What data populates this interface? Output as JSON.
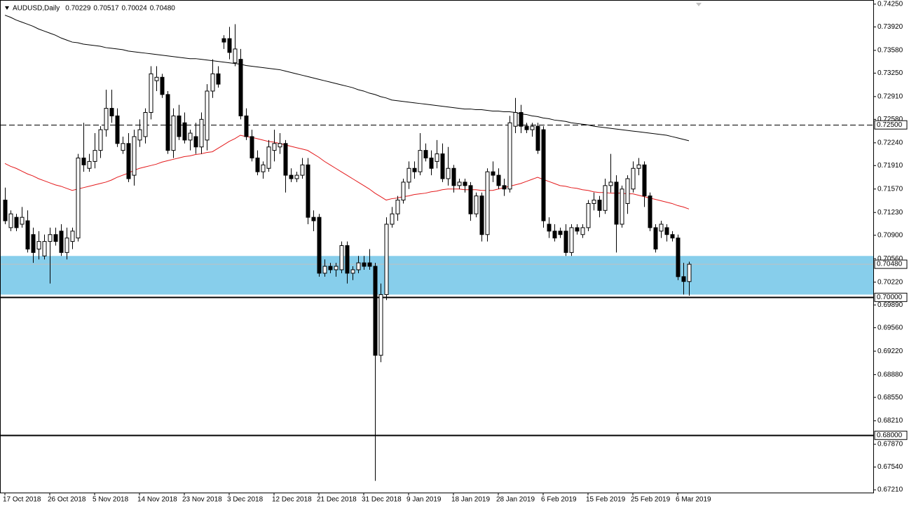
{
  "chart_data": {
    "type": "candlestick",
    "title": "AUDUSD,Daily",
    "quote": [
      "0.70229",
      "0.70517",
      "0.70024",
      "0.70480"
    ],
    "categories": [
      "17 Oct 2018",
      null,
      null,
      null,
      null,
      null,
      null,
      null,
      "26 Oct 2018",
      null,
      null,
      null,
      null,
      null,
      null,
      null,
      "5 Nov 2018",
      null,
      null,
      null,
      null,
      null,
      null,
      null,
      "14 Nov 2018",
      null,
      null,
      null,
      null,
      null,
      null,
      null,
      "23 Nov 2018",
      null,
      null,
      null,
      null,
      null,
      null,
      null,
      "3 Dec 2018",
      null,
      null,
      null,
      null,
      null,
      null,
      null,
      "12 Dec 2018",
      null,
      null,
      null,
      null,
      null,
      null,
      null,
      "21 Dec 2018",
      null,
      null,
      null,
      null,
      null,
      null,
      null,
      "31 Dec 2018",
      null,
      null,
      null,
      null,
      null,
      null,
      null,
      "9 Jan 2019",
      null,
      null,
      null,
      null,
      null,
      null,
      null,
      "18 Jan 2019",
      null,
      null,
      null,
      null,
      null,
      null,
      null,
      "28 Jan 2019",
      null,
      null,
      null,
      null,
      null,
      null,
      null,
      "6 Feb 2019",
      null,
      null,
      null,
      null,
      null,
      null,
      null,
      "15 Feb 2019",
      null,
      null,
      null,
      null,
      null,
      null,
      null,
      "25 Feb 2019",
      null,
      null,
      null,
      null,
      null,
      null,
      null,
      "6 Mar 2019",
      null,
      null
    ],
    "open": [
      0.7141,
      0.7101,
      0.7116,
      0.7106,
      0.7111,
      0.7091,
      0.707,
      0.706,
      0.7081,
      0.7091,
      0.7096,
      0.7065,
      0.7081,
      0.7086,
      0.7202,
      0.7187,
      0.7197,
      0.7213,
      0.7243,
      0.7274,
      0.7263,
      0.7213,
      0.7223,
      0.7177,
      0.7228,
      0.7233,
      0.7268,
      0.7314,
      0.7319,
      0.7294,
      0.7213,
      0.7263,
      0.7253,
      0.7228,
      0.7233,
      0.7218,
      0.7228,
      0.7299,
      0.7324,
      0.7375,
      0.7375,
      0.734,
      0.7345,
      0.7263,
      0.7233,
      0.7202,
      0.7182,
      0.7187,
      0.7213,
      0.7218,
      0.7223,
      0.7177,
      0.7172,
      0.7177,
      0.7192,
      0.7116,
      0.7116,
      0.7035,
      0.7045,
      0.704,
      0.704,
      0.7075,
      0.7035,
      0.704,
      0.705,
      0.705,
      0.7045,
      0.6916,
      0.7004,
      0.7106,
      0.7121,
      0.7141,
      0.7167,
      0.7187,
      0.7182,
      0.7213,
      0.7202,
      0.7197,
      0.7208,
      0.7172,
      0.7187,
      0.7162,
      0.7167,
      0.7162,
      0.7121,
      0.7147,
      0.7091,
      0.7182,
      0.7177,
      0.7162,
      0.7157,
      0.7248,
      0.7268,
      0.7248,
      0.7243,
      0.7248,
      0.7243,
      0.7106,
      0.7096,
      0.7096,
      0.7096,
      0.7065,
      0.7101,
      0.7091,
      0.7101,
      0.7136,
      0.7141,
      0.7126,
      0.7162,
      0.7167,
      0.7106,
      0.7136,
      0.7157,
      0.7187,
      0.7192,
      0.7147,
      0.7101,
      0.7096,
      0.7101,
      0.7091,
      0.7086,
      0.703,
      0.70229
    ],
    "high": [
      0.7159,
      0.7126,
      0.7121,
      0.7131,
      0.7126,
      0.7101,
      0.7096,
      0.7091,
      0.7101,
      0.7101,
      0.7106,
      0.7101,
      0.7101,
      0.7208,
      0.7253,
      0.7208,
      0.7238,
      0.7248,
      0.7301,
      0.7301,
      0.7274,
      0.7233,
      0.7238,
      0.7243,
      0.7258,
      0.7274,
      0.7335,
      0.7335,
      0.7324,
      0.7299,
      0.7274,
      0.7279,
      0.7268,
      0.7243,
      0.7253,
      0.7268,
      0.7309,
      0.7345,
      0.7335,
      0.738,
      0.7392,
      0.7396,
      0.736,
      0.7274,
      0.7243,
      0.7213,
      0.7197,
      0.7228,
      0.7243,
      0.7238,
      0.7228,
      0.7187,
      0.7182,
      0.7202,
      0.7202,
      0.7126,
      0.7121,
      0.7055,
      0.705,
      0.705,
      0.7081,
      0.7081,
      0.7045,
      0.706,
      0.706,
      0.707,
      0.705,
      0.702,
      0.7116,
      0.7131,
      0.7147,
      0.7172,
      0.7197,
      0.7197,
      0.7238,
      0.7223,
      0.7213,
      0.7228,
      0.7223,
      0.7218,
      0.7192,
      0.7172,
      0.7172,
      0.7167,
      0.7152,
      0.7152,
      0.7187,
      0.7197,
      0.7187,
      0.7172,
      0.7263,
      0.7289,
      0.7279,
      0.7253,
      0.7253,
      0.7253,
      0.7248,
      0.7116,
      0.7106,
      0.7101,
      0.7106,
      0.7106,
      0.7106,
      0.7106,
      0.7141,
      0.7152,
      0.7147,
      0.7172,
      0.7208,
      0.7177,
      0.7162,
      0.7177,
      0.7197,
      0.7202,
      0.7197,
      0.7152,
      0.7106,
      0.7111,
      0.7106,
      0.7096,
      0.7091,
      0.705,
      0.70517
    ],
    "low": [
      0.7106,
      0.7096,
      0.7096,
      0.7101,
      0.7065,
      0.705,
      0.7055,
      0.7055,
      0.702,
      0.7075,
      0.706,
      0.7055,
      0.707,
      0.7081,
      0.7182,
      0.7182,
      0.7187,
      0.7202,
      0.7233,
      0.7253,
      0.7218,
      0.7208,
      0.7167,
      0.7162,
      0.7218,
      0.7223,
      0.7258,
      0.7299,
      0.7289,
      0.7208,
      0.7202,
      0.7228,
      0.7223,
      0.7213,
      0.7208,
      0.7208,
      0.7213,
      0.7289,
      0.7304,
      0.736,
      0.7345,
      0.7335,
      0.7258,
      0.7228,
      0.7197,
      0.7177,
      0.7172,
      0.7182,
      0.7197,
      0.7208,
      0.7152,
      0.7167,
      0.7167,
      0.7172,
      0.7106,
      0.7096,
      0.703,
      0.703,
      0.7035,
      0.703,
      0.7035,
      0.702,
      0.7025,
      0.7035,
      0.704,
      0.704,
      0.6734,
      0.6906,
      0.6996,
      0.7101,
      0.7111,
      0.7136,
      0.7157,
      0.7172,
      0.7177,
      0.7197,
      0.7177,
      0.7187,
      0.7167,
      0.7162,
      0.7152,
      0.7157,
      0.7152,
      0.7111,
      0.7116,
      0.7081,
      0.7081,
      0.7167,
      0.7157,
      0.7147,
      0.7152,
      0.7238,
      0.7238,
      0.7238,
      0.7233,
      0.7208,
      0.7101,
      0.7086,
      0.7081,
      0.7086,
      0.706,
      0.706,
      0.7091,
      0.7086,
      0.7096,
      0.7126,
      0.7116,
      0.7121,
      0.7152,
      0.7065,
      0.7101,
      0.7121,
      0.7152,
      0.7177,
      0.7131,
      0.7096,
      0.7065,
      0.7086,
      0.7081,
      0.7081,
      0.7025,
      0.7004,
      0.70024
    ],
    "close": [
      0.7111,
      0.7121,
      0.7101,
      0.7116,
      0.707,
      0.7065,
      0.7081,
      0.7081,
      0.7091,
      0.7081,
      0.7065,
      0.7086,
      0.7096,
      0.7202,
      0.7192,
      0.7197,
      0.7213,
      0.7243,
      0.7274,
      0.7263,
      0.7223,
      0.7223,
      0.7172,
      0.7233,
      0.7243,
      0.7268,
      0.7324,
      0.7319,
      0.7294,
      0.7213,
      0.7263,
      0.7233,
      0.7228,
      0.7238,
      0.7218,
      0.7258,
      0.7299,
      0.7324,
      0.7309,
      0.737,
      0.7355,
      0.736,
      0.7263,
      0.7233,
      0.7202,
      0.7182,
      0.7192,
      0.7218,
      0.7223,
      0.7223,
      0.7177,
      0.7172,
      0.7177,
      0.7192,
      0.7116,
      0.7111,
      0.7035,
      0.7045,
      0.704,
      0.7045,
      0.7075,
      0.7035,
      0.704,
      0.705,
      0.7045,
      0.7045,
      0.6916,
      0.7004,
      0.7106,
      0.7121,
      0.7141,
      0.7167,
      0.7187,
      0.7182,
      0.7213,
      0.7202,
      0.7187,
      0.7208,
      0.7172,
      0.7187,
      0.7162,
      0.7167,
      0.7162,
      0.7121,
      0.7147,
      0.7091,
      0.7182,
      0.7177,
      0.7162,
      0.7157,
      0.7253,
      0.7268,
      0.7248,
      0.7243,
      0.7248,
      0.7213,
      0.7111,
      0.7096,
      0.7086,
      0.7091,
      0.7065,
      0.7101,
      0.7096,
      0.7101,
      0.7136,
      0.7141,
      0.7126,
      0.7162,
      0.7167,
      0.7106,
      0.7157,
      0.7172,
      0.7187,
      0.7192,
      0.7147,
      0.7101,
      0.707,
      0.7106,
      0.7091,
      0.7086,
      0.703,
      0.7023,
      0.7048
    ],
    "series": [
      {
        "color": "#000000",
        "values": [
          0.7409,
          0.7406,
          0.7402,
          0.7399,
          0.7396,
          0.7393,
          0.7389,
          0.7386,
          0.7383,
          0.738,
          0.7376,
          0.7373,
          0.737,
          0.7369,
          0.7367,
          0.7366,
          0.7365,
          0.7364,
          0.7362,
          0.7361,
          0.736,
          0.7359,
          0.7357,
          0.7356,
          0.7355,
          0.7354,
          0.7353,
          0.7352,
          0.7351,
          0.735,
          0.7349,
          0.7348,
          0.7347,
          0.7346,
          0.7346,
          0.7345,
          0.7344,
          0.7343,
          0.7342,
          0.7341,
          0.734,
          0.7339,
          0.7338,
          0.7336,
          0.7335,
          0.7334,
          0.7333,
          0.7332,
          0.7331,
          0.733,
          0.7328,
          0.7326,
          0.7324,
          0.7322,
          0.732,
          0.7318,
          0.7316,
          0.7314,
          0.7312,
          0.731,
          0.7308,
          0.7306,
          0.7304,
          0.7301,
          0.7299,
          0.7296,
          0.7294,
          0.7291,
          0.7289,
          0.7286,
          0.7285,
          0.7284,
          0.7283,
          0.7282,
          0.7281,
          0.728,
          0.7279,
          0.7278,
          0.7277,
          0.7276,
          0.7275,
          0.7274,
          0.7273,
          0.7273,
          0.7272,
          0.7272,
          0.7271,
          0.727,
          0.727,
          0.7269,
          0.7269,
          0.7268,
          0.7266,
          0.7265,
          0.7263,
          0.7262,
          0.726,
          0.7259,
          0.7257,
          0.7256,
          0.7255,
          0.7253,
          0.7252,
          0.7251,
          0.725,
          0.7248,
          0.7247,
          0.7246,
          0.7245,
          0.7244,
          0.7243,
          0.7242,
          0.7241,
          0.724,
          0.7239,
          0.7238,
          0.7237,
          0.7236,
          0.7235,
          0.7233,
          0.7231,
          0.7229,
          0.7227
        ]
      },
      {
        "color": "#e41a1c",
        "values": [
          0.7194,
          0.719,
          0.7187,
          0.7183,
          0.7179,
          0.7176,
          0.7172,
          0.7169,
          0.7166,
          0.7163,
          0.7161,
          0.7158,
          0.7155,
          0.7157,
          0.7159,
          0.7161,
          0.7163,
          0.7165,
          0.7167,
          0.717,
          0.7174,
          0.7177,
          0.718,
          0.7184,
          0.7187,
          0.7189,
          0.7191,
          0.7193,
          0.7196,
          0.7198,
          0.72,
          0.7202,
          0.7204,
          0.7205,
          0.7207,
          0.7208,
          0.721,
          0.7211,
          0.7216,
          0.7221,
          0.7226,
          0.723,
          0.7235,
          0.7233,
          0.7232,
          0.723,
          0.7228,
          0.7226,
          0.7225,
          0.7223,
          0.7221,
          0.7219,
          0.7217,
          0.7215,
          0.7213,
          0.7208,
          0.7203,
          0.7197,
          0.7192,
          0.7187,
          0.7182,
          0.7177,
          0.7172,
          0.7167,
          0.7162,
          0.7157,
          0.7151,
          0.7146,
          0.7141,
          0.7143,
          0.7144,
          0.7146,
          0.7147,
          0.7149,
          0.715,
          0.7151,
          0.7153,
          0.7154,
          0.7156,
          0.7157,
          0.7157,
          0.7157,
          0.7156,
          0.7156,
          0.7156,
          0.7155,
          0.7155,
          0.7155,
          0.7157,
          0.7159,
          0.7161,
          0.7163,
          0.7165,
          0.7168,
          0.7171,
          0.7174,
          0.7171,
          0.7168,
          0.7165,
          0.7162,
          0.7161,
          0.7159,
          0.7158,
          0.7156,
          0.7155,
          0.7153,
          0.7152,
          0.7152,
          0.7151,
          0.7151,
          0.7151,
          0.715,
          0.715,
          0.7148,
          0.7146,
          0.7144,
          0.7142,
          0.714,
          0.7138,
          0.7136,
          0.7133,
          0.7131,
          0.7128
        ]
      }
    ],
    "zone": [
      0.7004,
      0.706
    ],
    "zone_color": "#87ceeb",
    "hlines": [
      {
        "value": 0.725,
        "label": "0.72500",
        "dashed": true
      },
      {
        "value": 0.7,
        "label": "0.70000",
        "dashed": false
      },
      {
        "value": 0.68,
        "label": "0.68000",
        "dashed": false
      }
    ],
    "last_price": {
      "value": 0.7048,
      "label": "0.70480"
    },
    "ylim": [
      0.6717,
      0.7431
    ],
    "yticks": [
      {
        "value": 0.7425,
        "label": "0.74250"
      },
      {
        "value": 0.7392,
        "label": "0.73920"
      },
      {
        "value": 0.7358,
        "label": "0.73580"
      },
      {
        "value": 0.7325,
        "label": "0.73250"
      },
      {
        "value": 0.7291,
        "label": "0.72910"
      },
      {
        "value": 0.7258,
        "label": "0.72580"
      },
      {
        "value": 0.7224,
        "label": "0.72240"
      },
      {
        "value": 0.7191,
        "label": "0.71910"
      },
      {
        "value": 0.7157,
        "label": "0.71570"
      },
      {
        "value": 0.7123,
        "label": "0.71230"
      },
      {
        "value": 0.709,
        "label": "0.70900"
      },
      {
        "value": 0.7056,
        "label": "0.70560"
      },
      {
        "value": 0.7022,
        "label": "0.70220"
      },
      {
        "value": 0.6989,
        "label": "0.69890"
      },
      {
        "value": 0.6956,
        "label": "0.69560"
      },
      {
        "value": 0.6922,
        "label": "0.69220"
      },
      {
        "value": 0.6888,
        "label": "0.68880"
      },
      {
        "value": 0.6855,
        "label": "0.68550"
      },
      {
        "value": 0.6821,
        "label": "0.68210"
      },
      {
        "value": 0.6787,
        "label": "0.67870"
      },
      {
        "value": 0.6754,
        "label": "0.67540"
      },
      {
        "value": 0.6721,
        "label": "0.67210"
      }
    ]
  }
}
